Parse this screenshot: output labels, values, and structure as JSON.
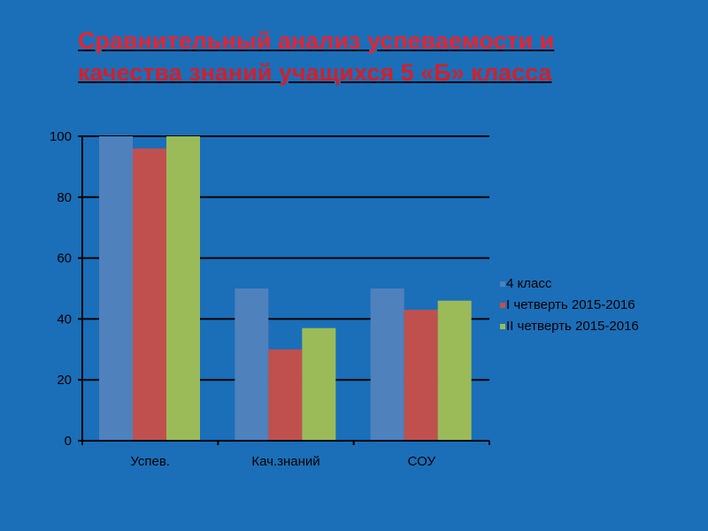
{
  "title": {
    "line1": "Сравнительный  анализ  успеваемости и",
    "line2": "качества знаний учащихся 5 «Б» класса"
  },
  "colors": {
    "background": "#1a6fb8",
    "title": "#e8232f"
  },
  "chart_data": {
    "type": "bar",
    "categories": [
      "Успев.",
      "Кач.знаний",
      "СОУ"
    ],
    "series": [
      {
        "name": "4 класс",
        "color": "#4f81bd",
        "values": [
          100,
          50,
          50
        ]
      },
      {
        "name": "I четверть 2015-2016",
        "color": "#c0504d",
        "values": [
          96,
          30,
          43
        ]
      },
      {
        "name": "II четверть 2015-2016",
        "color": "#9bbb59",
        "values": [
          100,
          37,
          46
        ]
      }
    ],
    "ylim": [
      0,
      100
    ],
    "yticks": [
      0,
      20,
      40,
      60,
      80,
      100
    ],
    "grid": true,
    "legend_position": "right"
  }
}
